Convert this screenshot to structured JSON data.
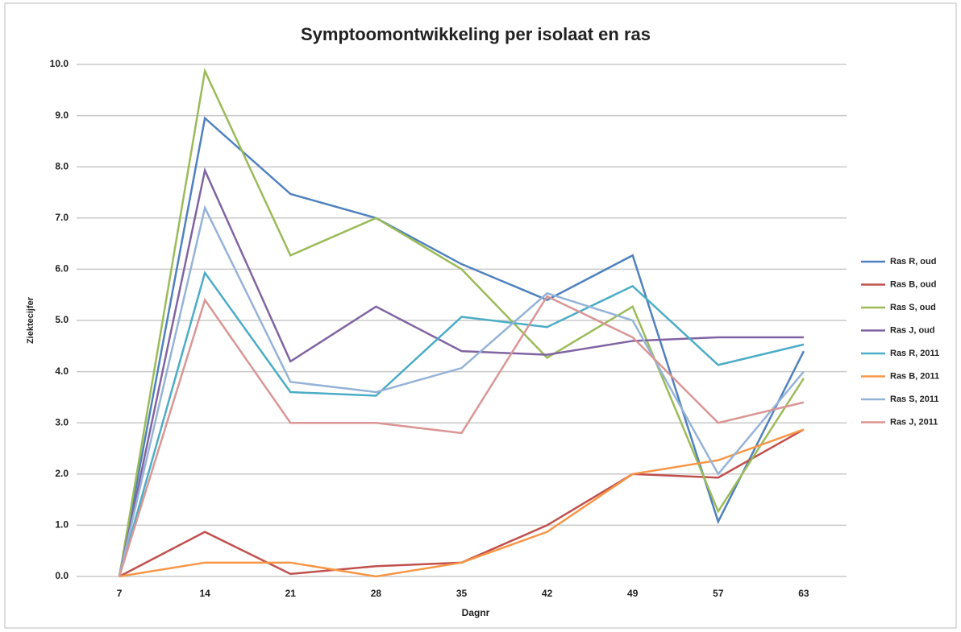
{
  "chart_data": {
    "type": "line",
    "title": "Symptoomontwikkeling per isolaat en ras",
    "x_label": "Dagnr",
    "y_label": "Ziektecijfer",
    "categories": [
      "7",
      "14",
      "21",
      "28",
      "35",
      "42",
      "49",
      "57",
      "63"
    ],
    "ylim": [
      0,
      10
    ],
    "yticks": [
      {
        "value": 0,
        "label": "0.0"
      },
      {
        "value": 1,
        "label": "1.0"
      },
      {
        "value": 2,
        "label": "2.0"
      },
      {
        "value": 3,
        "label": "3.0"
      },
      {
        "value": 4,
        "label": "4.0"
      },
      {
        "value": 5,
        "label": "5.0"
      },
      {
        "value": 6,
        "label": "6.0"
      },
      {
        "value": 7,
        "label": "7.0"
      },
      {
        "value": 8,
        "label": "8.0"
      },
      {
        "value": 9,
        "label": "9.0"
      },
      {
        "value": 10,
        "label": "10.0"
      }
    ],
    "grid": true,
    "legend": "right",
    "series": [
      {
        "name": "Ras R, oud",
        "color": "#4f81bd",
        "values": [
          0,
          8.95,
          7.47,
          7.0,
          6.1,
          5.4,
          6.27,
          1.07,
          4.4
        ]
      },
      {
        "name": "Ras B, oud",
        "color": "#c0504d",
        "values": [
          0,
          0.87,
          0.05,
          0.2,
          0.27,
          1.0,
          2.0,
          1.93,
          2.87
        ]
      },
      {
        "name": "Ras S, oud",
        "color": "#9bbb59",
        "values": [
          0,
          9.87,
          6.27,
          7.0,
          6.0,
          4.27,
          5.27,
          1.27,
          3.87
        ]
      },
      {
        "name": "Ras J, oud",
        "color": "#8064a2",
        "values": [
          0,
          7.93,
          4.2,
          5.27,
          4.4,
          4.33,
          4.6,
          4.67,
          4.67
        ]
      },
      {
        "name": "Ras R, 2011",
        "color": "#4bacc6",
        "values": [
          0,
          5.93,
          3.6,
          3.53,
          5.07,
          4.87,
          5.67,
          4.13,
          4.53
        ]
      },
      {
        "name": "Ras B, 2011",
        "color": "#f79646",
        "values": [
          0,
          0.27,
          0.27,
          0.0,
          0.27,
          0.87,
          2.0,
          2.27,
          2.87
        ]
      },
      {
        "name": "Ras S, 2011",
        "color": "#95b3d7",
        "values": [
          0,
          7.2,
          3.8,
          3.6,
          4.07,
          5.53,
          5.0,
          2.0,
          4.0
        ]
      },
      {
        "name": "Ras J, 2011",
        "color": "#d99694",
        "values": [
          0,
          5.4,
          3.0,
          3.0,
          2.8,
          5.47,
          4.67,
          3.0,
          3.4
        ]
      }
    ]
  }
}
